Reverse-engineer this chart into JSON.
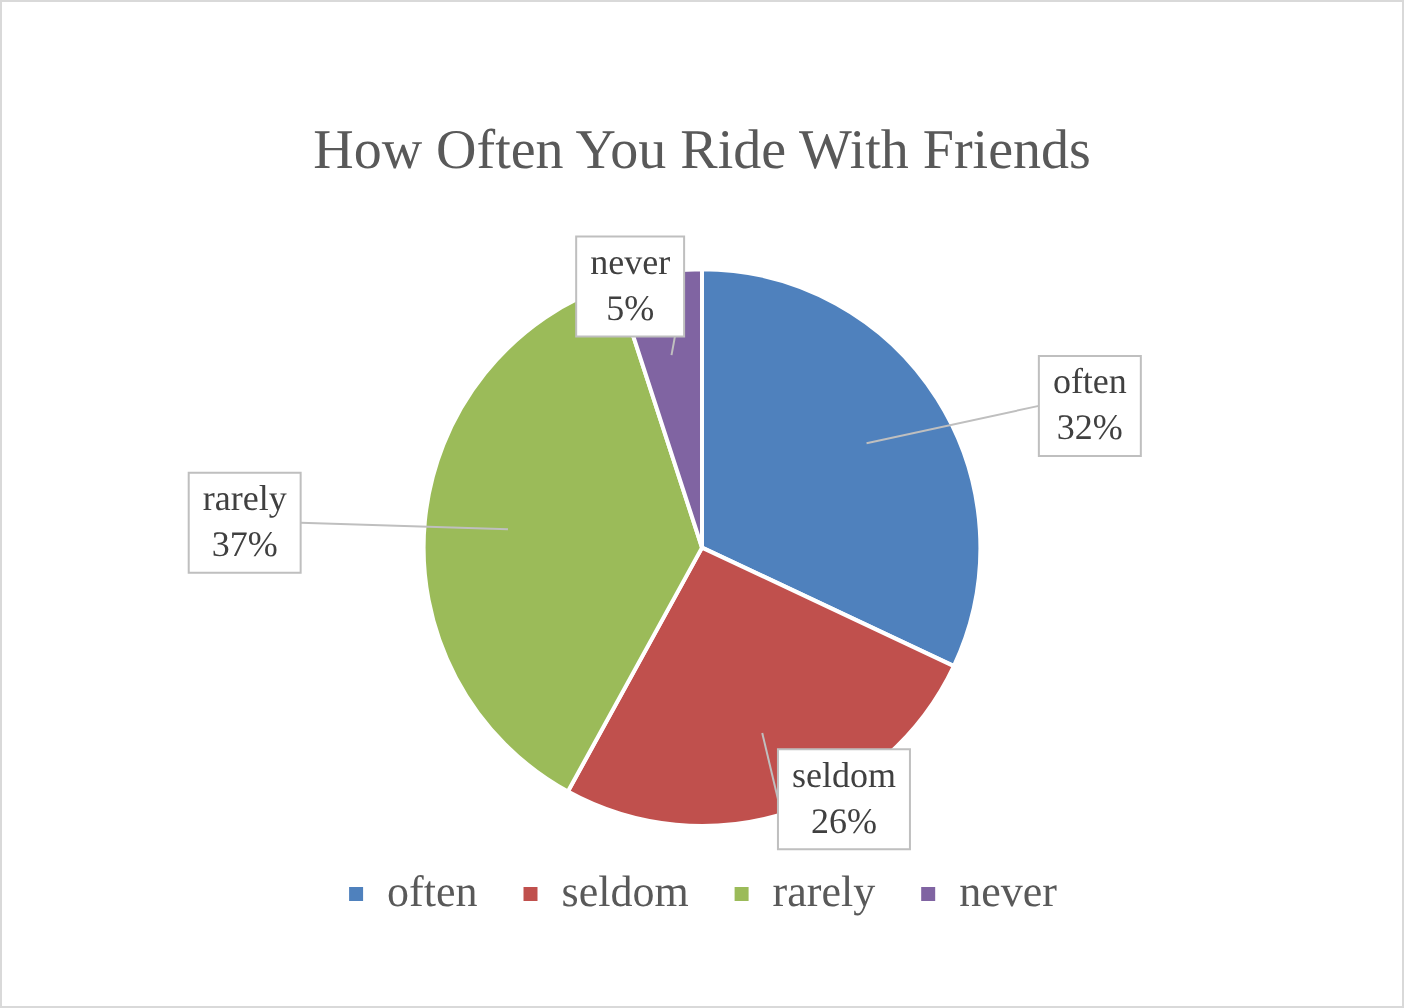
{
  "chart_data": {
    "type": "pie",
    "title": "How Often You Ride With Friends",
    "categories": [
      "often",
      "seldom",
      "rarely",
      "never"
    ],
    "values": [
      32,
      26,
      37,
      5
    ],
    "colors": [
      "#4f81bd",
      "#c0504d",
      "#9bbb59",
      "#8064a2"
    ],
    "value_labels": [
      "32%",
      "26%",
      "37%",
      "5%"
    ],
    "legend": "bottom"
  }
}
